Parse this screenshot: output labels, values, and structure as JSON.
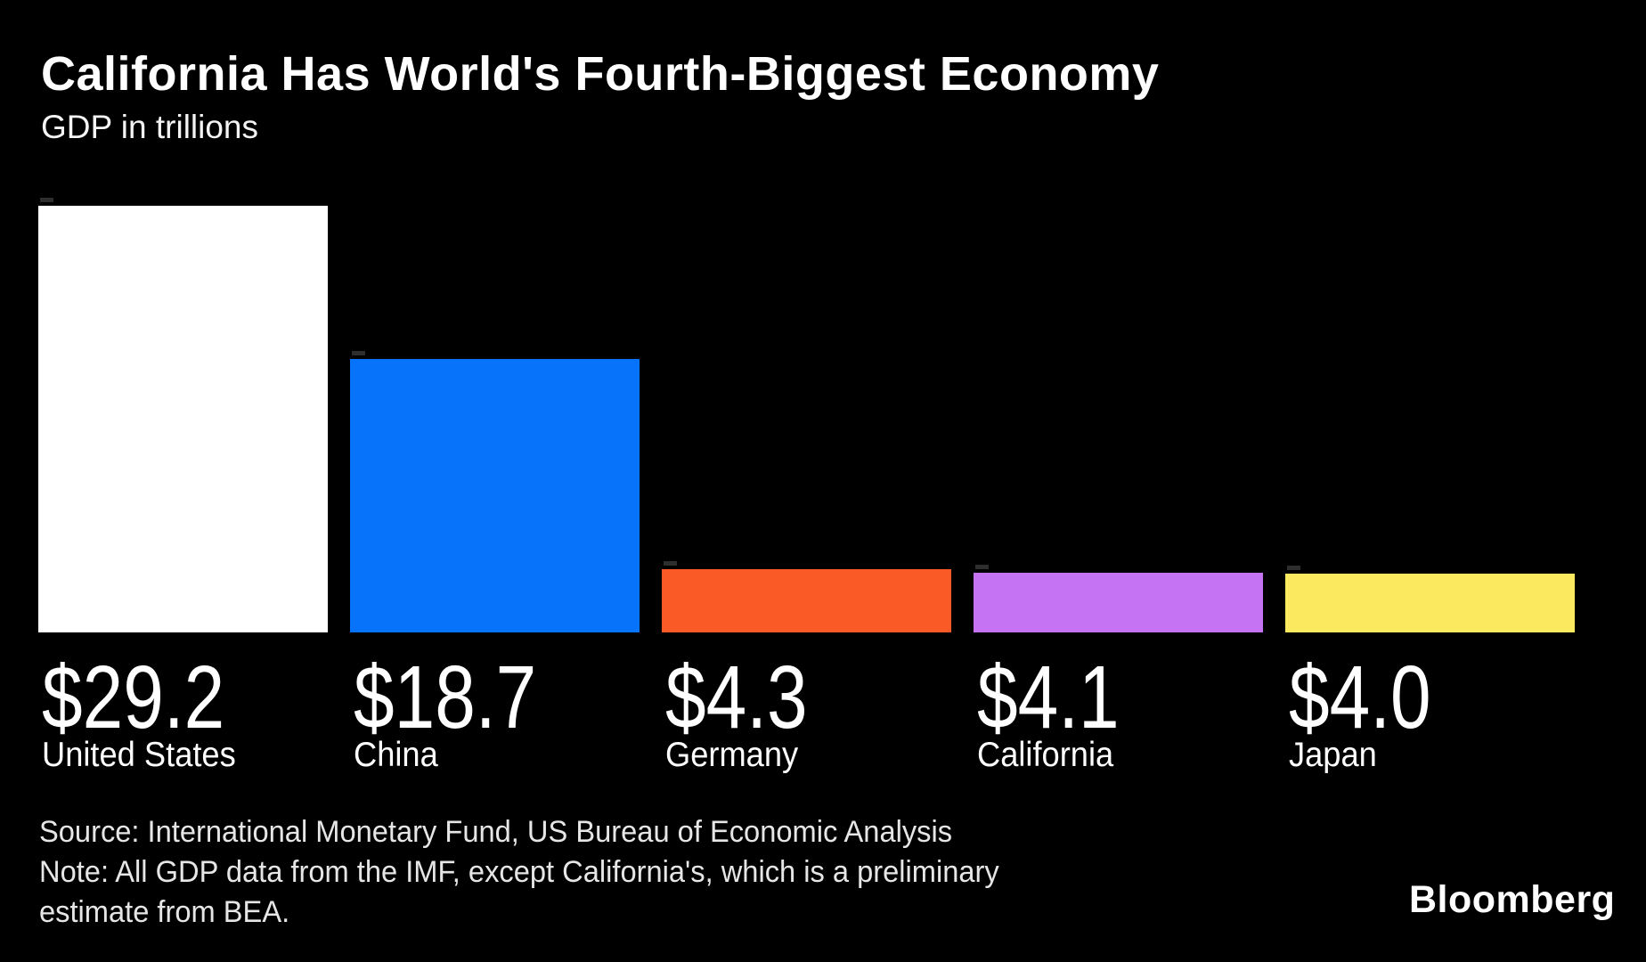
{
  "header": {
    "title": "California Has World's Fourth-Biggest Economy",
    "subtitle": "GDP in trillions"
  },
  "chart_data": {
    "type": "bar",
    "title": "California Has World's Fourth-Biggest Economy",
    "subtitle": "GDP in trillions",
    "unit": "USD trillions",
    "categories": [
      "United States",
      "China",
      "Germany",
      "California",
      "Japan"
    ],
    "values": [
      29.2,
      18.7,
      4.3,
      4.1,
      4.0
    ],
    "value_labels": [
      "$29.2",
      "$18.7",
      "$4.3",
      "$4.1",
      "$4.0"
    ],
    "bar_colors": [
      "#ffffff",
      "#0673fa",
      "#f95a26",
      "#c573f2",
      "#fbea5f"
    ],
    "ylim": [
      0,
      29.2
    ],
    "grid": false,
    "legend": "none",
    "orientation": "vertical",
    "value_label_position": "below-bar",
    "background": "#000000"
  },
  "footer": {
    "source_line": "Source: International Monetary Fund, US Bureau of Economic Analysis",
    "note_line1": "Note: All GDP data from the IMF, except California's, which is a preliminary",
    "note_line2": "estimate from BEA.",
    "brand": "Bloomberg"
  },
  "colors": {
    "background": "#000000",
    "title_text": "#ffffff",
    "muted_text": "#e6e6e6"
  }
}
